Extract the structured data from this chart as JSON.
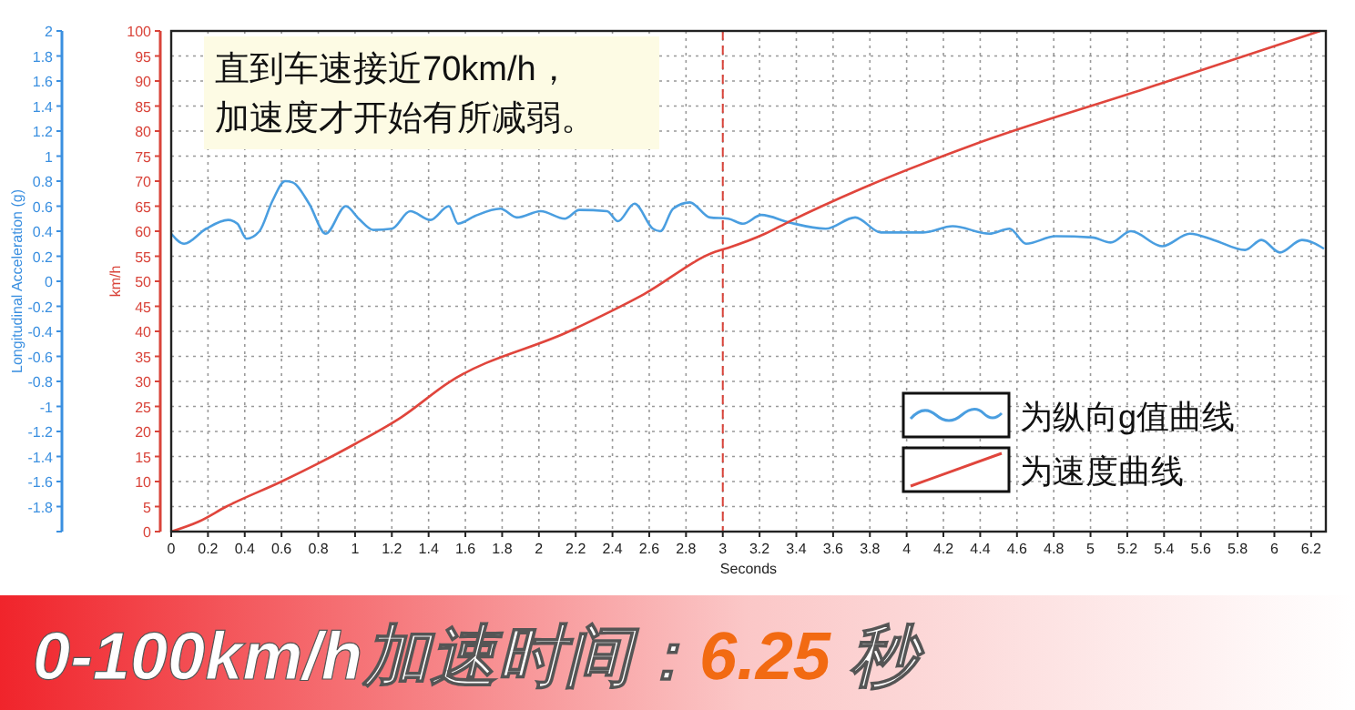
{
  "chart_data": {
    "type": "line",
    "title": "0-100km/h加速时间：6.25 秒",
    "xlabel": "Seconds",
    "ylabel": "km/h",
    "y2label": "Longitudinal Acceleration (g)",
    "xlim": [
      0,
      6.28
    ],
    "xticks": [
      0,
      0.2,
      0.4,
      0.6,
      0.8,
      1,
      1.2,
      1.4,
      1.6,
      1.8,
      2,
      2.2,
      2.4,
      2.6,
      2.8,
      3,
      3.2,
      3.4,
      3.6,
      3.8,
      4,
      4.2,
      4.4,
      4.6,
      4.8,
      5,
      5.2,
      5.4,
      5.6,
      5.8,
      6,
      6.2
    ],
    "ylim": [
      0,
      100
    ],
    "yticks": [
      0,
      5,
      10,
      15,
      20,
      25,
      30,
      35,
      40,
      45,
      50,
      55,
      60,
      65,
      70,
      75,
      80,
      85,
      90,
      95,
      100
    ],
    "y2lim": [
      -2,
      2
    ],
    "y2ticks": [
      {
        "value": -2,
        "label": null
      },
      -1.8,
      -1.6,
      -1.4,
      -1.2,
      -1,
      -0.8,
      -0.6,
      -0.4,
      -0.2,
      0,
      0.2,
      0.4,
      0.6,
      0.8,
      1,
      1.2,
      1.4,
      1.6,
      1.8,
      2
    ],
    "grid": true,
    "legend": "bottom right",
    "line_style": "solid",
    "ref_lines": [
      {
        "axis": "x",
        "value": 3,
        "color": "#d9443a",
        "line_style": "dashed"
      }
    ],
    "annotations": [
      "直到车速接近70km/h，",
      "加速度才开始有所减弱。"
    ],
    "series": [
      {
        "name": "为纵向g值曲线",
        "color": "#4a9ee0",
        "axis": "y2",
        "x": [
          0,
          0.07,
          0.19,
          0.31,
          0.36,
          0.41,
          0.48,
          0.55,
          0.62,
          0.66,
          0.75,
          0.84,
          0.95,
          1.02,
          1.1,
          1.2,
          1.3,
          1.41,
          1.51,
          1.56,
          1.65,
          1.79,
          1.88,
          2.01,
          2.14,
          2.22,
          2.37,
          2.43,
          2.52,
          2.62,
          2.66,
          2.73,
          2.82,
          2.93,
          3.03,
          3.11,
          3.21,
          3.36,
          3.56,
          3.72,
          3.86,
          4.09,
          4.25,
          4.45,
          4.56,
          4.65,
          4.81,
          5.01,
          5.11,
          5.22,
          5.39,
          5.54,
          5.67,
          5.84,
          5.93,
          6.03,
          6.15,
          6.27
        ],
        "values": [
          0.38,
          0.3,
          0.42,
          0.49,
          0.46,
          0.34,
          0.4,
          0.64,
          0.8,
          0.79,
          0.62,
          0.38,
          0.6,
          0.5,
          0.41,
          0.42,
          0.56,
          0.49,
          0.6,
          0.46,
          0.52,
          0.58,
          0.51,
          0.56,
          0.5,
          0.57,
          0.56,
          0.48,
          0.62,
          0.42,
          0.4,
          0.58,
          0.63,
          0.51,
          0.5,
          0.46,
          0.53,
          0.47,
          0.42,
          0.51,
          0.39,
          0.39,
          0.44,
          0.38,
          0.42,
          0.3,
          0.36,
          0.35,
          0.31,
          0.4,
          0.28,
          0.38,
          0.33,
          0.25,
          0.33,
          0.23,
          0.33,
          0.26
        ]
      },
      {
        "name": "为速度曲线",
        "color": "#e0453c",
        "x": [
          0,
          0.15,
          0.3,
          0.6,
          1,
          1.25,
          1.51,
          2.17,
          2.57,
          2.96,
          3.03,
          3.23,
          3.36,
          3.76,
          4.35,
          5.3,
          6.25
        ],
        "values": [
          0,
          2,
          5,
          10,
          17.5,
          22.8,
          29.8,
          40.1,
          47.4,
          55.9,
          56.7,
          59.5,
          61.9,
          68.6,
          77.1,
          88.5,
          100
        ]
      }
    ]
  }
}
